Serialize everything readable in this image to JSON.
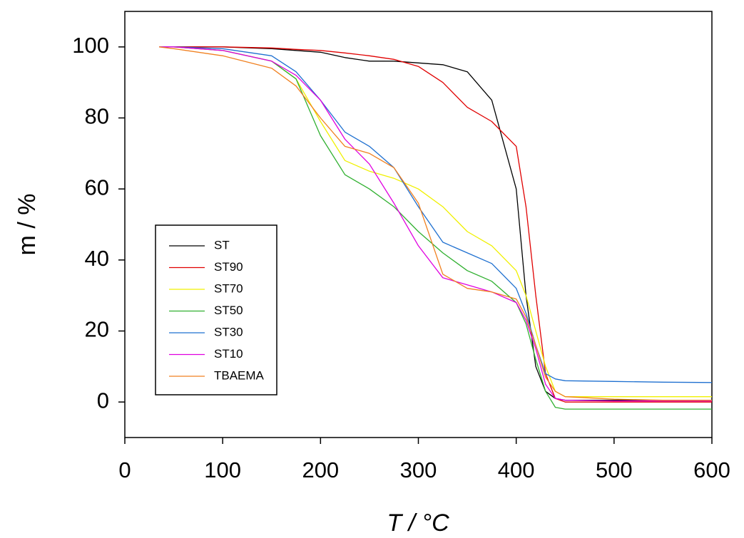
{
  "chart_data": {
    "type": "line",
    "xlabel": "T / °C",
    "ylabel": "m / %",
    "x": [
      35,
      50,
      100,
      150,
      175,
      200,
      225,
      250,
      275,
      300,
      325,
      350,
      375,
      400,
      410,
      420,
      430,
      440,
      450,
      500,
      550,
      600
    ],
    "series": [
      {
        "name": "ST",
        "color": "#000000",
        "values": [
          100,
          100,
          100,
          99.5,
          99,
          98.5,
          97,
          96,
          96,
          95.5,
          95,
          93,
          85,
          60,
          30,
          10,
          3,
          1,
          0.5,
          0.5,
          0.5,
          0.5
        ]
      },
      {
        "name": "ST90",
        "color": "#e00000",
        "values": [
          100,
          100,
          100,
          99.7,
          99.3,
          99,
          98.3,
          97.5,
          96.5,
          94.5,
          90,
          83,
          79,
          72,
          55,
          30,
          8,
          1,
          0,
          0,
          0,
          0
        ]
      },
      {
        "name": "ST70",
        "color": "#f0f000",
        "values": [
          100,
          100,
          99,
          96,
          91,
          79,
          68,
          65,
          63,
          60,
          55,
          48,
          44,
          37,
          30,
          20,
          10,
          3,
          1.5,
          1.5,
          1.5,
          1.5
        ]
      },
      {
        "name": "ST50",
        "color": "#30b030",
        "values": [
          100,
          100,
          99,
          96,
          91,
          75,
          64,
          60,
          55,
          48,
          42,
          37,
          34,
          28,
          22,
          12,
          3,
          -1.5,
          -2,
          -2,
          -2,
          -2
        ]
      },
      {
        "name": "ST30",
        "color": "#1f70d0",
        "values": [
          100,
          100,
          99.5,
          97.5,
          93,
          85,
          76,
          72,
          66,
          55,
          45,
          42,
          39,
          32,
          25,
          16,
          8,
          6.5,
          6,
          5.8,
          5.6,
          5.5
        ]
      },
      {
        "name": "ST10",
        "color": "#e000e0",
        "values": [
          100,
          100,
          99,
          96,
          92,
          85,
          74,
          67,
          56,
          44,
          35,
          33,
          31,
          28,
          23,
          15,
          5,
          1,
          0.5,
          0.3,
          0.3,
          0.3
        ]
      },
      {
        "name": "TBAEMA",
        "color": "#f08020",
        "values": [
          100,
          99.5,
          97.5,
          94,
          89,
          80,
          72,
          70,
          66,
          56,
          36,
          32,
          31,
          29,
          24,
          16,
          7,
          3,
          1.5,
          0.8,
          0.5,
          0.5
        ]
      }
    ],
    "xlim": [
      0,
      600
    ],
    "xticks": [
      0,
      100,
      200,
      300,
      400,
      500,
      600
    ],
    "ylim": [
      -10,
      110
    ],
    "yticks": [
      0,
      20,
      40,
      60,
      80,
      100
    ],
    "legend": "left"
  }
}
